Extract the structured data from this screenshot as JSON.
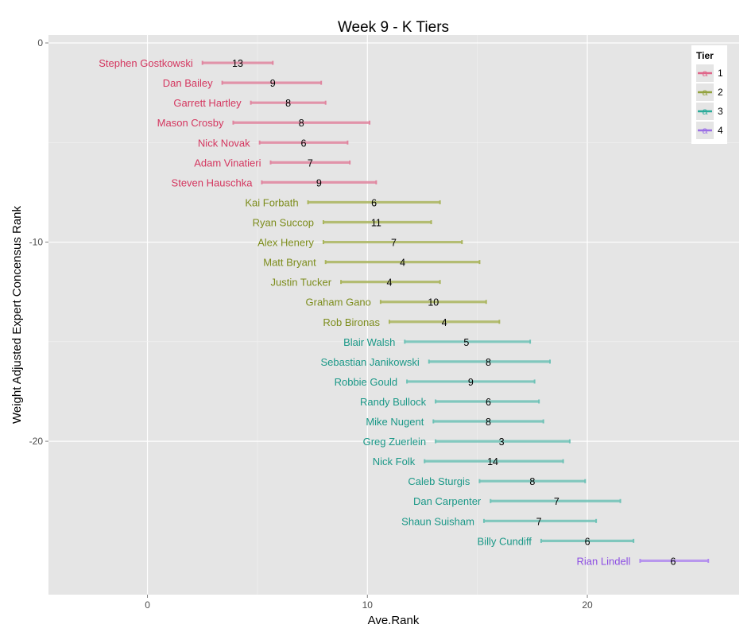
{
  "chart_data": {
    "type": "errorbar",
    "title": "Week 9 - K Tiers",
    "xlabel": "Ave.Rank",
    "ylabel": "Weight Adjusted Expert Concensus Rank",
    "xlim": [
      -4.5,
      26.9
    ],
    "ylim": [
      -27.7,
      0.4
    ],
    "x_ticks": [
      0,
      10,
      20
    ],
    "x_tick_labels": [
      "0",
      "10",
      "20"
    ],
    "y_ticks": [
      0,
      -10,
      -20
    ],
    "y_tick_labels": [
      "0",
      "-10",
      "-20"
    ],
    "grid": true,
    "legend": {
      "title": "Tier",
      "position": "top-right",
      "key_glyph": "a",
      "entries": [
        {
          "label": "1",
          "color": "#e0668a"
        },
        {
          "label": "2",
          "color": "#93a33e"
        },
        {
          "label": "3",
          "color": "#2aab9a"
        },
        {
          "label": "4",
          "color": "#9b6fe6"
        }
      ]
    },
    "tier_colors": {
      "1": {
        "bar": "#e0859f",
        "text": "#d4365f"
      },
      "2": {
        "bar": "#aab55e",
        "text": "#7c8c1b"
      },
      "3": {
        "bar": "#6ec2b6",
        "text": "#1a9887"
      },
      "4": {
        "bar": "#b08aef",
        "text": "#8c4de3"
      }
    },
    "players": [
      {
        "name": "Stephen Gostkowski",
        "rank": -1,
        "ave": 4.1,
        "lo": 2.5,
        "hi": 5.7,
        "value": "13",
        "tier": 1
      },
      {
        "name": "Dan Bailey",
        "rank": -2,
        "ave": 5.7,
        "lo": 3.4,
        "hi": 7.9,
        "value": "9",
        "tier": 1
      },
      {
        "name": "Garrett Hartley",
        "rank": -3,
        "ave": 6.4,
        "lo": 4.7,
        "hi": 8.1,
        "value": "8",
        "tier": 1
      },
      {
        "name": "Mason Crosby",
        "rank": -4,
        "ave": 7.0,
        "lo": 3.9,
        "hi": 10.1,
        "value": "8",
        "tier": 1
      },
      {
        "name": "Nick Novak",
        "rank": -5,
        "ave": 7.1,
        "lo": 5.1,
        "hi": 9.1,
        "value": "6",
        "tier": 1
      },
      {
        "name": "Adam Vinatieri",
        "rank": -6,
        "ave": 7.4,
        "lo": 5.6,
        "hi": 9.2,
        "value": "7",
        "tier": 1
      },
      {
        "name": "Steven Hauschka",
        "rank": -7,
        "ave": 7.8,
        "lo": 5.2,
        "hi": 10.4,
        "value": "9",
        "tier": 1
      },
      {
        "name": "Kai Forbath",
        "rank": -8,
        "ave": 10.3,
        "lo": 7.3,
        "hi": 13.3,
        "value": "6",
        "tier": 2
      },
      {
        "name": "Ryan Succop",
        "rank": -9,
        "ave": 10.4,
        "lo": 8.0,
        "hi": 12.9,
        "value": "11",
        "tier": 2
      },
      {
        "name": "Alex Henery",
        "rank": -10,
        "ave": 11.2,
        "lo": 8.0,
        "hi": 14.3,
        "value": "7",
        "tier": 2
      },
      {
        "name": "Matt Bryant",
        "rank": -11,
        "ave": 11.6,
        "lo": 8.1,
        "hi": 15.1,
        "value": "4",
        "tier": 2
      },
      {
        "name": "Justin Tucker",
        "rank": -12,
        "ave": 11.0,
        "lo": 8.8,
        "hi": 13.3,
        "value": "4",
        "tier": 2
      },
      {
        "name": "Graham Gano",
        "rank": -13,
        "ave": 13.0,
        "lo": 10.6,
        "hi": 15.4,
        "value": "10",
        "tier": 2
      },
      {
        "name": "Rob Bironas",
        "rank": -14,
        "ave": 13.5,
        "lo": 11.0,
        "hi": 16.0,
        "value": "4",
        "tier": 2
      },
      {
        "name": "Blair Walsh",
        "rank": -15,
        "ave": 14.5,
        "lo": 11.7,
        "hi": 17.4,
        "value": "5",
        "tier": 3
      },
      {
        "name": "Sebastian Janikowski",
        "rank": -16,
        "ave": 15.5,
        "lo": 12.8,
        "hi": 18.3,
        "value": "8",
        "tier": 3
      },
      {
        "name": "Robbie Gould",
        "rank": -17,
        "ave": 14.7,
        "lo": 11.8,
        "hi": 17.6,
        "value": "9",
        "tier": 3
      },
      {
        "name": "Randy Bullock",
        "rank": -18,
        "ave": 15.5,
        "lo": 13.1,
        "hi": 17.8,
        "value": "6",
        "tier": 3
      },
      {
        "name": "Mike Nugent",
        "rank": -19,
        "ave": 15.5,
        "lo": 13.0,
        "hi": 18.0,
        "value": "8",
        "tier": 3
      },
      {
        "name": "Greg Zuerlein",
        "rank": -20,
        "ave": 16.1,
        "lo": 13.1,
        "hi": 19.2,
        "value": "3",
        "tier": 3
      },
      {
        "name": "Nick Folk",
        "rank": -21,
        "ave": 15.7,
        "lo": 12.6,
        "hi": 18.9,
        "value": "14",
        "tier": 3
      },
      {
        "name": "Caleb Sturgis",
        "rank": -22,
        "ave": 17.5,
        "lo": 15.1,
        "hi": 19.9,
        "value": "8",
        "tier": 3
      },
      {
        "name": "Dan Carpenter",
        "rank": -23,
        "ave": 18.6,
        "lo": 15.6,
        "hi": 21.5,
        "value": "7",
        "tier": 3
      },
      {
        "name": "Shaun Suisham",
        "rank": -24,
        "ave": 17.8,
        "lo": 15.3,
        "hi": 20.4,
        "value": "7",
        "tier": 3
      },
      {
        "name": "Billy Cundiff",
        "rank": -25,
        "ave": 20.0,
        "lo": 17.9,
        "hi": 22.1,
        "value": "6",
        "tier": 3
      },
      {
        "name": "Rian Lindell",
        "rank": -26,
        "ave": 23.9,
        "lo": 22.4,
        "hi": 25.5,
        "value": "6",
        "tier": 4
      }
    ]
  }
}
